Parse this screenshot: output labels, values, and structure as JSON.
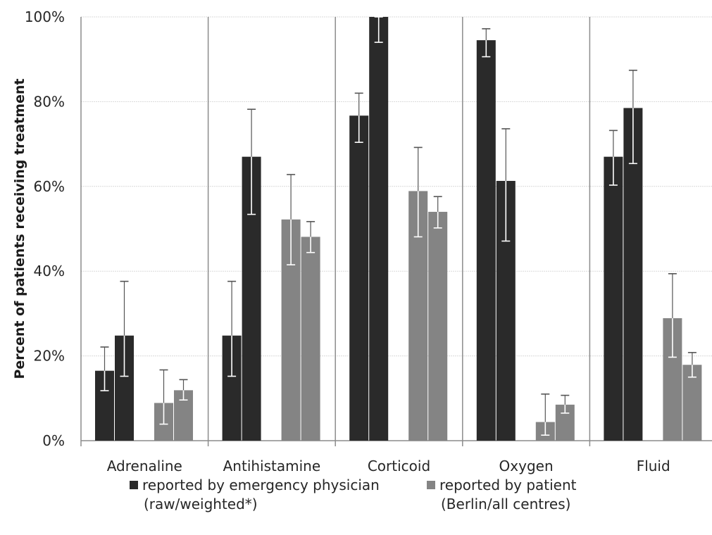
{
  "chart_data": {
    "type": "bar",
    "categories": [
      "Adrenaline",
      "Antihistamine",
      "Corticoid",
      "Oxygen",
      "Fluid"
    ],
    "ylabel": "Percent of patients receiving treatment",
    "xlabel": "",
    "ylim": [
      0,
      100
    ],
    "yticks": [
      "0%",
      "20%",
      "40%",
      "60%",
      "80%",
      "100%"
    ],
    "grid": true,
    "legend_position": "bottom",
    "series": [
      {
        "name": "physician_raw",
        "group": "physician",
        "color": "#2a2a2a",
        "values": [
          16.5,
          24.8,
          76.7,
          94.5,
          67.0
        ],
        "err_low": [
          11.8,
          15.2,
          70.4,
          90.6,
          60.3
        ],
        "err_high": [
          22.1,
          37.6,
          82.0,
          97.2,
          73.2
        ]
      },
      {
        "name": "physician_weighted",
        "group": "physician",
        "color": "#2a2a2a",
        "values": [
          24.8,
          67.0,
          100,
          61.3,
          78.5
        ],
        "err_low": [
          15.2,
          53.4,
          94.0,
          47.1,
          65.4
        ],
        "err_high": [
          37.6,
          78.2,
          100,
          73.6,
          87.4
        ]
      },
      {
        "name": "patient_berlin",
        "group": "patient",
        "color": "#848484",
        "values": [
          8.9,
          52.2,
          58.9,
          4.4,
          28.9
        ],
        "err_low": [
          3.9,
          41.5,
          48.1,
          1.3,
          19.7
        ],
        "err_high": [
          16.7,
          62.8,
          69.2,
          11.0,
          39.4
        ]
      },
      {
        "name": "patient_all",
        "group": "patient",
        "color": "#848484",
        "values": [
          11.9,
          48.1,
          54.0,
          8.5,
          17.9
        ],
        "err_low": [
          9.6,
          44.4,
          50.2,
          6.5,
          15.0
        ],
        "err_high": [
          14.4,
          51.7,
          57.6,
          10.7,
          20.8
        ]
      }
    ]
  },
  "legend": [
    {
      "line1": "reported by emergency physician",
      "line2": "(raw/weighted*)",
      "color": "#2a2a2a"
    },
    {
      "line1": "reported by patient",
      "line2": "(Berlin/all centres)",
      "color": "#848484"
    }
  ]
}
